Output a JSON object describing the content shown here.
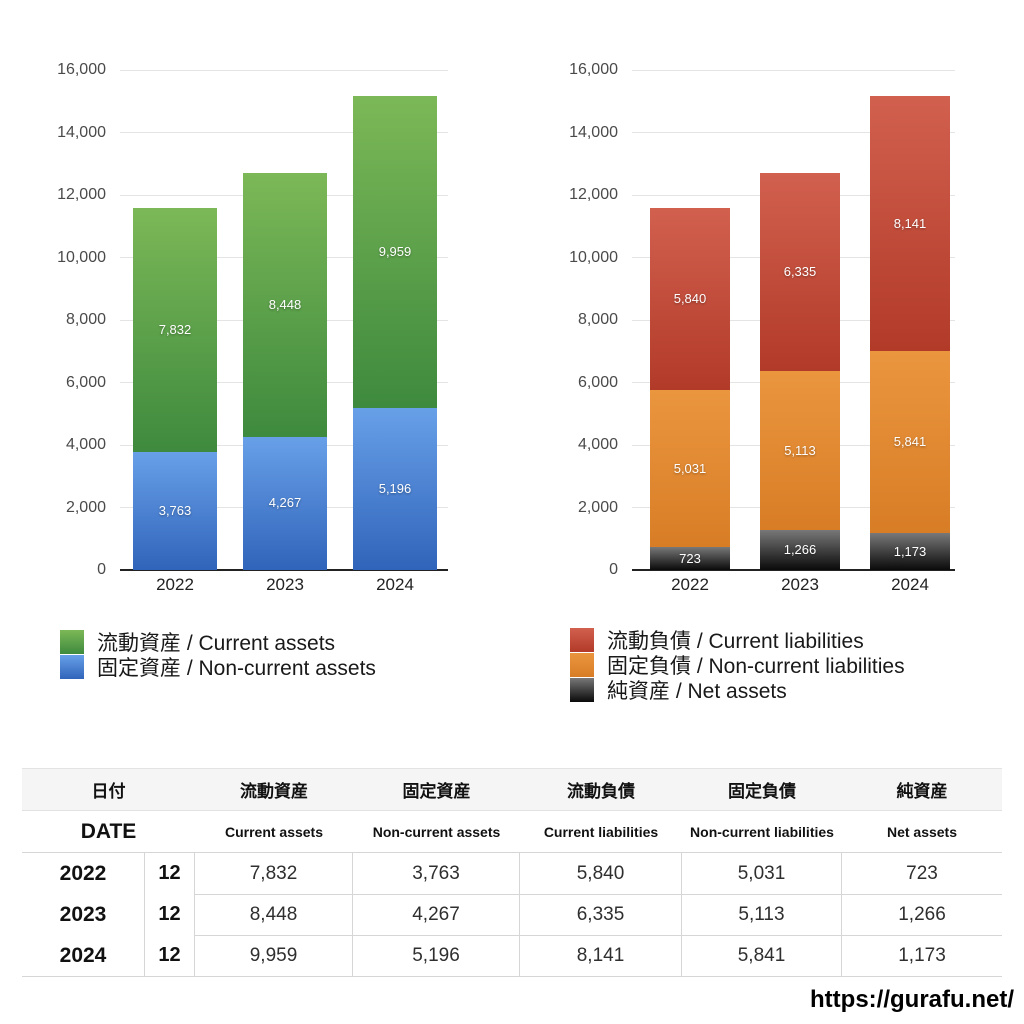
{
  "page": {
    "url_watermark": "https://gurafu.net/"
  },
  "chart_data": [
    {
      "type": "bar",
      "stacked": true,
      "name": "assets-chart",
      "categories": [
        "2022",
        "2023",
        "2024"
      ],
      "series": [
        {
          "name": "固定資産 / Non-current assets",
          "values": [
            3763,
            4267,
            5196
          ],
          "color_top": "#68a0e8",
          "color_bottom": "#3064ba"
        },
        {
          "name": "流動資産 / Current assets",
          "values": [
            7832,
            8448,
            9959
          ],
          "color_top": "#7cb857",
          "color_bottom": "#3e8a3e"
        }
      ],
      "legend": [
        {
          "label": "流動資産 / Current assets",
          "color_top": "#7cb857",
          "color_bottom": "#3e8a3e"
        },
        {
          "label": "固定資産 / Non-current assets",
          "color_top": "#68a0e8",
          "color_bottom": "#3064ba"
        }
      ],
      "ylim": [
        0,
        16000
      ],
      "y_tick_step": 2000,
      "y_tick_labels": [
        "0",
        "2,000",
        "4,000",
        "6,000",
        "8,000",
        "10,000",
        "12,000",
        "14,000",
        "16,000"
      ],
      "grid": true,
      "legend_position": "bottom-left"
    },
    {
      "type": "bar",
      "stacked": true,
      "name": "liabilities-chart",
      "categories": [
        "2022",
        "2023",
        "2024"
      ],
      "series": [
        {
          "name": "純資産 / Net assets",
          "values": [
            723,
            1266,
            1173
          ],
          "color_top": "#787878",
          "color_bottom": "#0a0a0a"
        },
        {
          "name": "固定負債 / Non-current liabilities",
          "values": [
            5031,
            5113,
            5841
          ],
          "color_top": "#ea963f",
          "color_bottom": "#d87d26"
        },
        {
          "name": "流動負債 / Current liabilities",
          "values": [
            5840,
            6335,
            8141
          ],
          "color_top": "#d2604f",
          "color_bottom": "#b23a28"
        }
      ],
      "legend": [
        {
          "label": "流動負債 / Current liabilities",
          "color_top": "#d2604f",
          "color_bottom": "#b23a28"
        },
        {
          "label": "固定負債 / Non-current liabilities",
          "color_top": "#ea963f",
          "color_bottom": "#d87d26"
        },
        {
          "label": "純資産 / Net assets",
          "color_top": "#787878",
          "color_bottom": "#0a0a0a"
        }
      ],
      "ylim": [
        0,
        16000
      ],
      "y_tick_step": 2000,
      "y_tick_labels": [
        "0",
        "2,000",
        "4,000",
        "6,000",
        "8,000",
        "10,000",
        "12,000",
        "14,000",
        "16,000"
      ],
      "grid": true,
      "legend_position": "bottom-left"
    }
  ],
  "table": {
    "col_headers_jp": [
      "日付",
      "流動資産",
      "固定資産",
      "流動負債",
      "固定負債",
      "純資産"
    ],
    "col_headers_en": [
      "DATE",
      "Current assets",
      "Non-current assets",
      "Current liabilities",
      "Non-current liabilities",
      "Net assets"
    ],
    "rows": [
      {
        "year": "2022",
        "month": "12",
        "values": [
          "7,832",
          "3,763",
          "5,840",
          "5,031",
          "723"
        ]
      },
      {
        "year": "2023",
        "month": "12",
        "values": [
          "8,448",
          "4,267",
          "6,335",
          "5,113",
          "1,266"
        ]
      },
      {
        "year": "2024",
        "month": "12",
        "values": [
          "9,959",
          "5,196",
          "8,141",
          "5,841",
          "1,173"
        ]
      }
    ]
  }
}
